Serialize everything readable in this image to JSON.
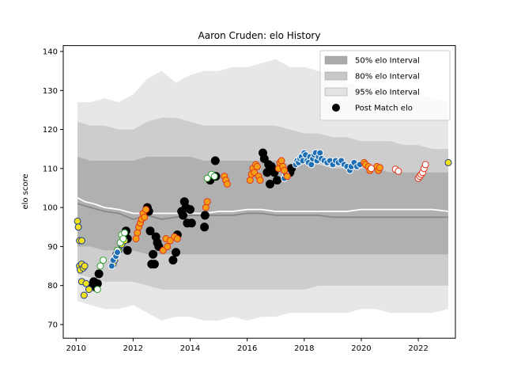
{
  "chart_data": {
    "type": "scatter",
    "title": "Aaron Cruden: elo History",
    "xlabel": "",
    "ylabel": "elo score",
    "xlim": [
      2009.55,
      2023.3
    ],
    "ylim": [
      66.5,
      141.5
    ],
    "xticks": [
      2010,
      2012,
      2014,
      2016,
      2018,
      2020,
      2022
    ],
    "xtick_labels": [
      "2010",
      "2012",
      "2014",
      "2016",
      "2018",
      "2020",
      "2022"
    ],
    "yticks": [
      70,
      80,
      90,
      100,
      110,
      120,
      130,
      140
    ],
    "ytick_labels": [
      "70",
      "80",
      "90",
      "100",
      "110",
      "120",
      "130",
      "140"
    ],
    "grid": false,
    "legend_position": "top-right",
    "legend": [
      {
        "label": "50% elo Interval",
        "kind": "band",
        "color": "#aaaaaa"
      },
      {
        "label": "80% elo Interval",
        "kind": "band",
        "color": "#c8c8c8"
      },
      {
        "label": "95% elo Interval",
        "kind": "band",
        "color": "#e3e3e3"
      },
      {
        "label": "Post Match elo",
        "kind": "marker",
        "color": "#000000"
      }
    ],
    "bands": {
      "x": [
        2010.05,
        2010.5,
        2011,
        2011.5,
        2012,
        2012.5,
        2013,
        2013.5,
        2014,
        2014.5,
        2015,
        2015.5,
        2016,
        2016.5,
        2017,
        2017.5,
        2018,
        2018.5,
        2019,
        2019.5,
        2020,
        2020.5,
        2021,
        2021.5,
        2022,
        2022.5,
        2023.05
      ],
      "b95": {
        "upper": [
          127,
          127,
          128,
          127,
          129,
          133,
          135,
          132,
          134,
          135,
          135,
          136,
          136,
          137,
          138,
          136,
          136,
          135,
          134,
          132,
          131,
          131,
          130,
          130,
          129,
          128,
          127
        ],
        "lower": [
          76,
          75,
          74,
          74,
          75,
          73,
          71,
          72,
          72,
          71,
          71,
          72,
          71,
          72,
          72,
          73,
          73,
          73,
          73,
          73,
          74,
          74,
          73,
          73,
          73,
          73,
          74
        ]
      },
      "b80": {
        "upper": [
          122,
          121,
          121,
          120,
          120,
          122,
          123,
          123,
          122,
          121,
          121,
          121,
          121,
          121,
          121,
          120,
          119,
          119,
          118,
          118,
          117,
          117,
          117,
          116,
          116,
          115,
          115
        ],
        "lower": [
          83,
          82,
          81,
          81,
          81,
          80,
          79,
          79,
          79,
          79,
          79,
          79,
          79,
          79,
          79,
          79,
          79,
          80,
          80,
          80,
          80,
          80,
          80,
          80,
          80,
          80,
          80
        ]
      },
      "b50": {
        "upper": [
          113,
          112,
          112,
          112,
          112,
          113,
          113,
          113,
          113,
          112,
          112,
          112,
          112,
          112,
          112,
          111,
          111,
          111,
          110,
          110,
          110,
          110,
          109,
          109,
          109,
          109,
          109
        ],
        "lower": [
          90,
          90,
          89,
          89,
          89,
          88,
          88,
          88,
          88,
          88,
          88,
          88,
          88,
          88,
          88,
          88,
          88,
          88,
          88,
          88,
          88,
          88,
          88,
          88,
          88,
          88,
          88
        ]
      }
    },
    "median_line": {
      "color": "#888888",
      "x": [
        2010.05,
        2010.5,
        2011,
        2011.5,
        2012,
        2012.5,
        2013,
        2013.5,
        2014,
        2014.5,
        2015,
        2015.5,
        2016,
        2016.5,
        2017,
        2017.5,
        2018,
        2018.5,
        2019,
        2019.5,
        2020,
        2020.5,
        2021,
        2021.5,
        2022,
        2022.5,
        2023.05
      ],
      "y": [
        101,
        100,
        99,
        98.5,
        97,
        98,
        97,
        97.5,
        98,
        98,
        98,
        98,
        98.5,
        98.5,
        98,
        98,
        98,
        98,
        97.5,
        97.5,
        97.5,
        97.5,
        97.5,
        97.5,
        97.5,
        97.5,
        97.5
      ]
    },
    "mean_line": {
      "color": "#ffffff",
      "x": [
        2010.05,
        2010.3,
        2010.6,
        2011,
        2011.5,
        2012,
        2012.5,
        2013,
        2013.5,
        2014,
        2014.5,
        2015,
        2015.5,
        2016,
        2016.5,
        2017,
        2017.5,
        2018,
        2018.5,
        2019,
        2019.5,
        2020,
        2020.5,
        2021,
        2021.5,
        2022,
        2022.5,
        2023.05
      ],
      "y": [
        102.5,
        101.5,
        101,
        100,
        99.5,
        98.5,
        98.5,
        98.5,
        98.5,
        98.5,
        98.5,
        99,
        99,
        99.5,
        99.5,
        99,
        99,
        99,
        99,
        99,
        99,
        99.5,
        99.5,
        99.5,
        99.5,
        99.5,
        99.5,
        99
      ]
    },
    "series": [
      {
        "name": "Post Match elo",
        "fill": "#000000",
        "edge": "#000000",
        "points": [
          [
            2010.55,
            80
          ],
          [
            2010.62,
            81
          ],
          [
            2010.7,
            79.5
          ],
          [
            2010.75,
            80.5
          ],
          [
            2010.8,
            83
          ],
          [
            2011.75,
            94
          ],
          [
            2011.8,
            92
          ],
          [
            2011.8,
            89
          ],
          [
            2012.5,
            100
          ],
          [
            2012.55,
            99
          ],
          [
            2012.6,
            94
          ],
          [
            2012.65,
            85.5
          ],
          [
            2012.7,
            88
          ],
          [
            2012.75,
            85.5
          ],
          [
            2012.8,
            92.5
          ],
          [
            2012.85,
            91
          ],
          [
            2012.9,
            90
          ],
          [
            2013.4,
            86.5
          ],
          [
            2013.5,
            88.5
          ],
          [
            2013.55,
            93
          ],
          [
            2013.7,
            99
          ],
          [
            2013.75,
            98
          ],
          [
            2013.8,
            101.5
          ],
          [
            2013.85,
            100
          ],
          [
            2013.9,
            96
          ],
          [
            2014.0,
            99.5
          ],
          [
            2014.05,
            96
          ],
          [
            2014.5,
            95
          ],
          [
            2014.52,
            98
          ],
          [
            2014.7,
            107
          ],
          [
            2014.8,
            108
          ],
          [
            2014.88,
            112
          ],
          [
            2014.9,
            108
          ],
          [
            2016.55,
            114
          ],
          [
            2016.6,
            112.5
          ],
          [
            2016.7,
            109
          ],
          [
            2016.75,
            111
          ],
          [
            2016.8,
            106
          ],
          [
            2016.85,
            110.5
          ],
          [
            2016.95,
            109
          ],
          [
            2017.05,
            107
          ],
          [
            2017.5,
            109
          ],
          [
            2017.55,
            110
          ]
        ]
      },
      {
        "name": "yellow",
        "fill": "#f2e21c",
        "edge": "#1f3b8a",
        "points": [
          [
            2010.05,
            96.5
          ],
          [
            2010.08,
            95
          ],
          [
            2010.12,
            91.5
          ],
          [
            2010.2,
            91.5
          ],
          [
            2010.12,
            85
          ],
          [
            2010.15,
            84
          ],
          [
            2010.2,
            85.5
          ],
          [
            2010.25,
            84.5
          ],
          [
            2010.3,
            85
          ],
          [
            2010.2,
            81
          ],
          [
            2010.35,
            80.5
          ],
          [
            2010.28,
            77.5
          ],
          [
            2010.45,
            79
          ],
          [
            2011.3,
            85.5
          ],
          [
            2011.35,
            86.5
          ],
          [
            2011.4,
            88
          ],
          [
            2011.5,
            89
          ],
          [
            2011.6,
            90.5
          ],
          [
            2011.7,
            91.5
          ],
          [
            2023.05,
            111.5
          ]
        ]
      },
      {
        "name": "green",
        "fill": "#ffffff",
        "edge": "#2ca02c",
        "points": [
          [
            2010.75,
            79
          ],
          [
            2010.85,
            85
          ],
          [
            2010.95,
            86.5
          ],
          [
            2011.45,
            89
          ],
          [
            2011.55,
            91
          ],
          [
            2011.6,
            93
          ],
          [
            2011.65,
            92
          ],
          [
            2011.7,
            93.5
          ],
          [
            2014.6,
            107.5
          ],
          [
            2014.75,
            108.5
          ],
          [
            2014.85,
            108
          ]
        ]
      },
      {
        "name": "blue",
        "fill": "#1f6fb4",
        "edge": "#ffffff",
        "points": [
          [
            2011.25,
            85
          ],
          [
            2011.3,
            86.5
          ],
          [
            2011.4,
            87.5
          ],
          [
            2011.45,
            88.5
          ],
          [
            2017.3,
            107.5
          ],
          [
            2017.35,
            108.5
          ],
          [
            2017.7,
            111
          ],
          [
            2017.75,
            112
          ],
          [
            2017.8,
            111.5
          ],
          [
            2017.85,
            112.5
          ],
          [
            2017.9,
            113
          ],
          [
            2017.95,
            112
          ],
          [
            2018.0,
            114
          ],
          [
            2018.05,
            113.5
          ],
          [
            2018.1,
            112
          ],
          [
            2018.15,
            111.5
          ],
          [
            2018.2,
            113
          ],
          [
            2018.25,
            111
          ],
          [
            2018.3,
            112.5
          ],
          [
            2018.35,
            113.5
          ],
          [
            2018.4,
            114
          ],
          [
            2018.45,
            112
          ],
          [
            2018.5,
            113
          ],
          [
            2018.55,
            114
          ],
          [
            2018.6,
            112.5
          ],
          [
            2018.7,
            112
          ],
          [
            2018.8,
            111.5
          ],
          [
            2018.9,
            112
          ],
          [
            2019.0,
            111
          ],
          [
            2019.1,
            112
          ],
          [
            2019.2,
            111.5
          ],
          [
            2019.3,
            112
          ],
          [
            2019.4,
            111
          ],
          [
            2019.5,
            110.5
          ],
          [
            2019.6,
            109.5
          ],
          [
            2019.65,
            110.5
          ],
          [
            2019.75,
            111.5
          ],
          [
            2019.85,
            110.5
          ],
          [
            2019.95,
            111
          ]
        ]
      },
      {
        "name": "orange",
        "fill": "#f5a014",
        "edge": "#e2341c",
        "points": [
          [
            2012.1,
            92
          ],
          [
            2012.15,
            93.5
          ],
          [
            2012.2,
            95
          ],
          [
            2012.25,
            96
          ],
          [
            2012.3,
            97
          ],
          [
            2012.35,
            98.5
          ],
          [
            2012.4,
            97.5
          ],
          [
            2012.45,
            99.5
          ],
          [
            2013.05,
            89
          ],
          [
            2013.15,
            92
          ],
          [
            2013.2,
            90
          ],
          [
            2013.3,
            91.5
          ],
          [
            2013.45,
            92.5
          ],
          [
            2013.55,
            92
          ],
          [
            2014.55,
            100
          ],
          [
            2014.6,
            101.5
          ],
          [
            2015.2,
            108
          ],
          [
            2015.25,
            107
          ],
          [
            2015.3,
            106
          ],
          [
            2016.1,
            107
          ],
          [
            2016.15,
            108.5
          ],
          [
            2016.2,
            110
          ],
          [
            2016.25,
            109
          ],
          [
            2016.3,
            111
          ],
          [
            2016.35,
            110.5
          ],
          [
            2016.4,
            108
          ],
          [
            2016.45,
            107
          ],
          [
            2017.1,
            110
          ],
          [
            2017.15,
            111.5
          ],
          [
            2017.2,
            112
          ],
          [
            2017.25,
            110.5
          ],
          [
            2017.3,
            109.5
          ],
          [
            2017.4,
            108
          ],
          [
            2020.1,
            111.5
          ],
          [
            2020.15,
            111
          ],
          [
            2020.25,
            110.5
          ],
          [
            2020.3,
            109.5
          ],
          [
            2020.55,
            110.5
          ],
          [
            2020.6,
            109.5
          ],
          [
            2020.65,
            110.2
          ]
        ]
      },
      {
        "name": "red",
        "fill": "#ffffff",
        "edge": "#e2341c",
        "points": [
          [
            2020.35,
            110
          ],
          [
            2021.2,
            109.8
          ],
          [
            2021.3,
            109.3
          ],
          [
            2022.0,
            107.5
          ],
          [
            2022.05,
            108
          ],
          [
            2022.1,
            108.5
          ],
          [
            2022.15,
            109
          ],
          [
            2022.2,
            110
          ],
          [
            2022.25,
            111
          ]
        ]
      }
    ]
  }
}
